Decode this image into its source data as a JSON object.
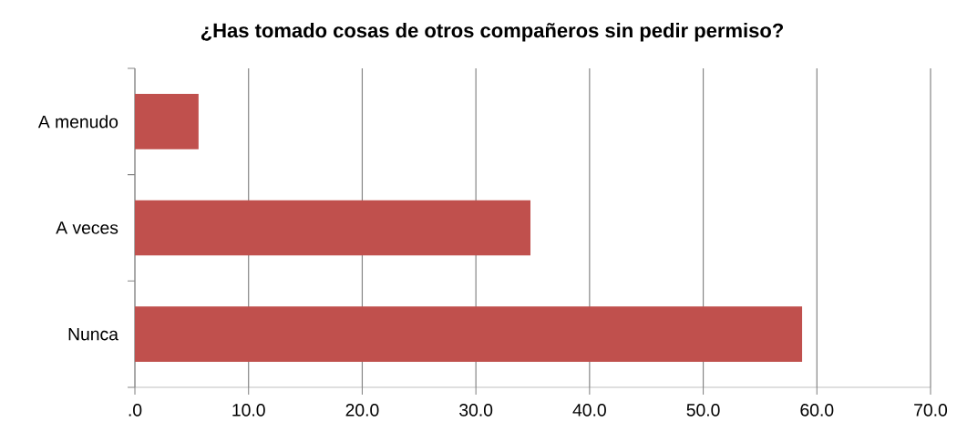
{
  "chart_data": {
    "type": "bar",
    "orientation": "horizontal",
    "title": "¿Has tomado cosas de otros compañeros sin pedir permiso?",
    "categories": [
      "A menudo",
      "A veces",
      "Nunca"
    ],
    "values": [
      5.6,
      34.8,
      58.7
    ],
    "color": "#c0504d",
    "xlim": [
      0,
      70
    ],
    "xticks": [
      {
        "value": 0,
        "label": ".0"
      },
      {
        "value": 10,
        "label": "10.0"
      },
      {
        "value": 20,
        "label": "20.0"
      },
      {
        "value": 30,
        "label": "30.0"
      },
      {
        "value": 40,
        "label": "40.0"
      },
      {
        "value": 50,
        "label": "50.0"
      },
      {
        "value": 60,
        "label": "60.0"
      },
      {
        "value": 70,
        "label": "70.0"
      }
    ],
    "grid": "x"
  }
}
